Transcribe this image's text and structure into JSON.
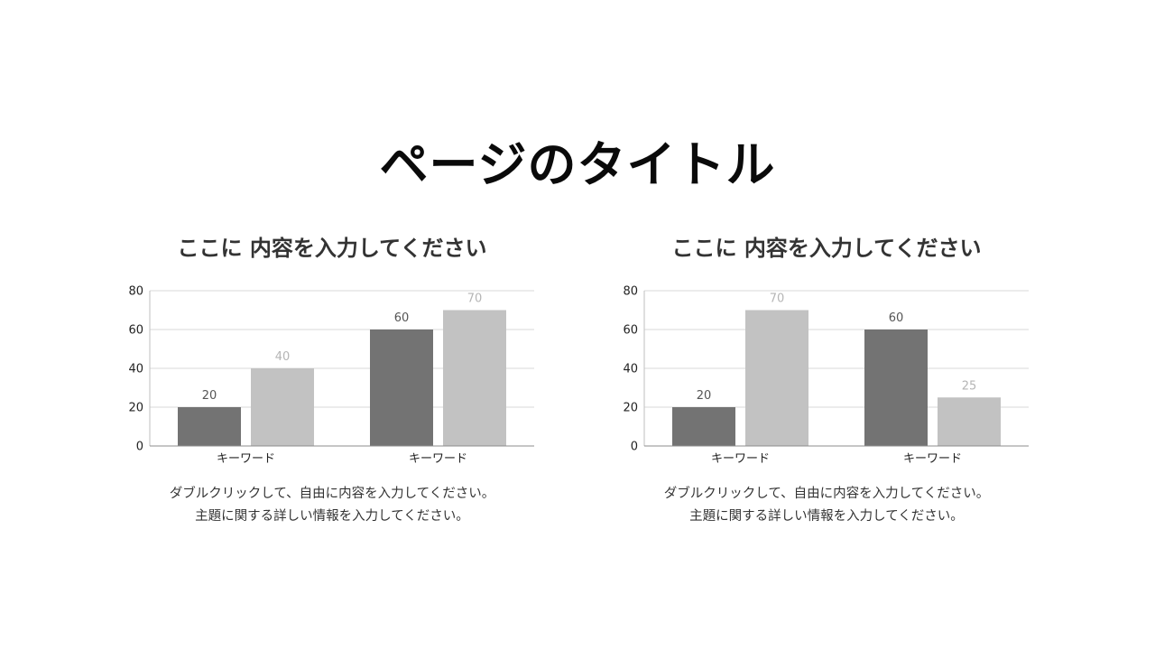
{
  "page": {
    "title": "ページのタイトル"
  },
  "panels": [
    {
      "heading": "ここに 内容を入力してください",
      "caption_lines": [
        "ダブルクリックして、自由に内容を入力してください。",
        "主題に関する詳しい情報を入力してください。"
      ]
    },
    {
      "heading": "ここに 内容を入力してください",
      "caption_lines": [
        "ダブルクリックして、自由に内容を入力してください。",
        "主題に関する詳しい情報を入力してください。"
      ]
    }
  ],
  "chart_data": [
    {
      "type": "bar",
      "categories": [
        "キーワード",
        "キーワード"
      ],
      "series": [
        {
          "values": [
            20,
            60
          ],
          "color": "#737373",
          "label_color": "#555555"
        },
        {
          "values": [
            40,
            70
          ],
          "color": "#c2c2c2",
          "label_color": "#b5b5b5"
        }
      ],
      "title": "",
      "xlabel": "",
      "ylabel": "",
      "ylim": [
        0,
        80
      ],
      "yticks": [
        0,
        20,
        40,
        60,
        80
      ],
      "grid": true,
      "data_labels": true
    },
    {
      "type": "bar",
      "categories": [
        "キーワード",
        "キーワード"
      ],
      "series": [
        {
          "values": [
            20,
            60
          ],
          "color": "#737373",
          "label_color": "#555555"
        },
        {
          "values": [
            70,
            25
          ],
          "color": "#c2c2c2",
          "label_color": "#b5b5b5"
        }
      ],
      "title": "",
      "xlabel": "",
      "ylabel": "",
      "ylim": [
        0,
        80
      ],
      "yticks": [
        0,
        20,
        40,
        60,
        80
      ],
      "grid": true,
      "data_labels": true
    }
  ]
}
